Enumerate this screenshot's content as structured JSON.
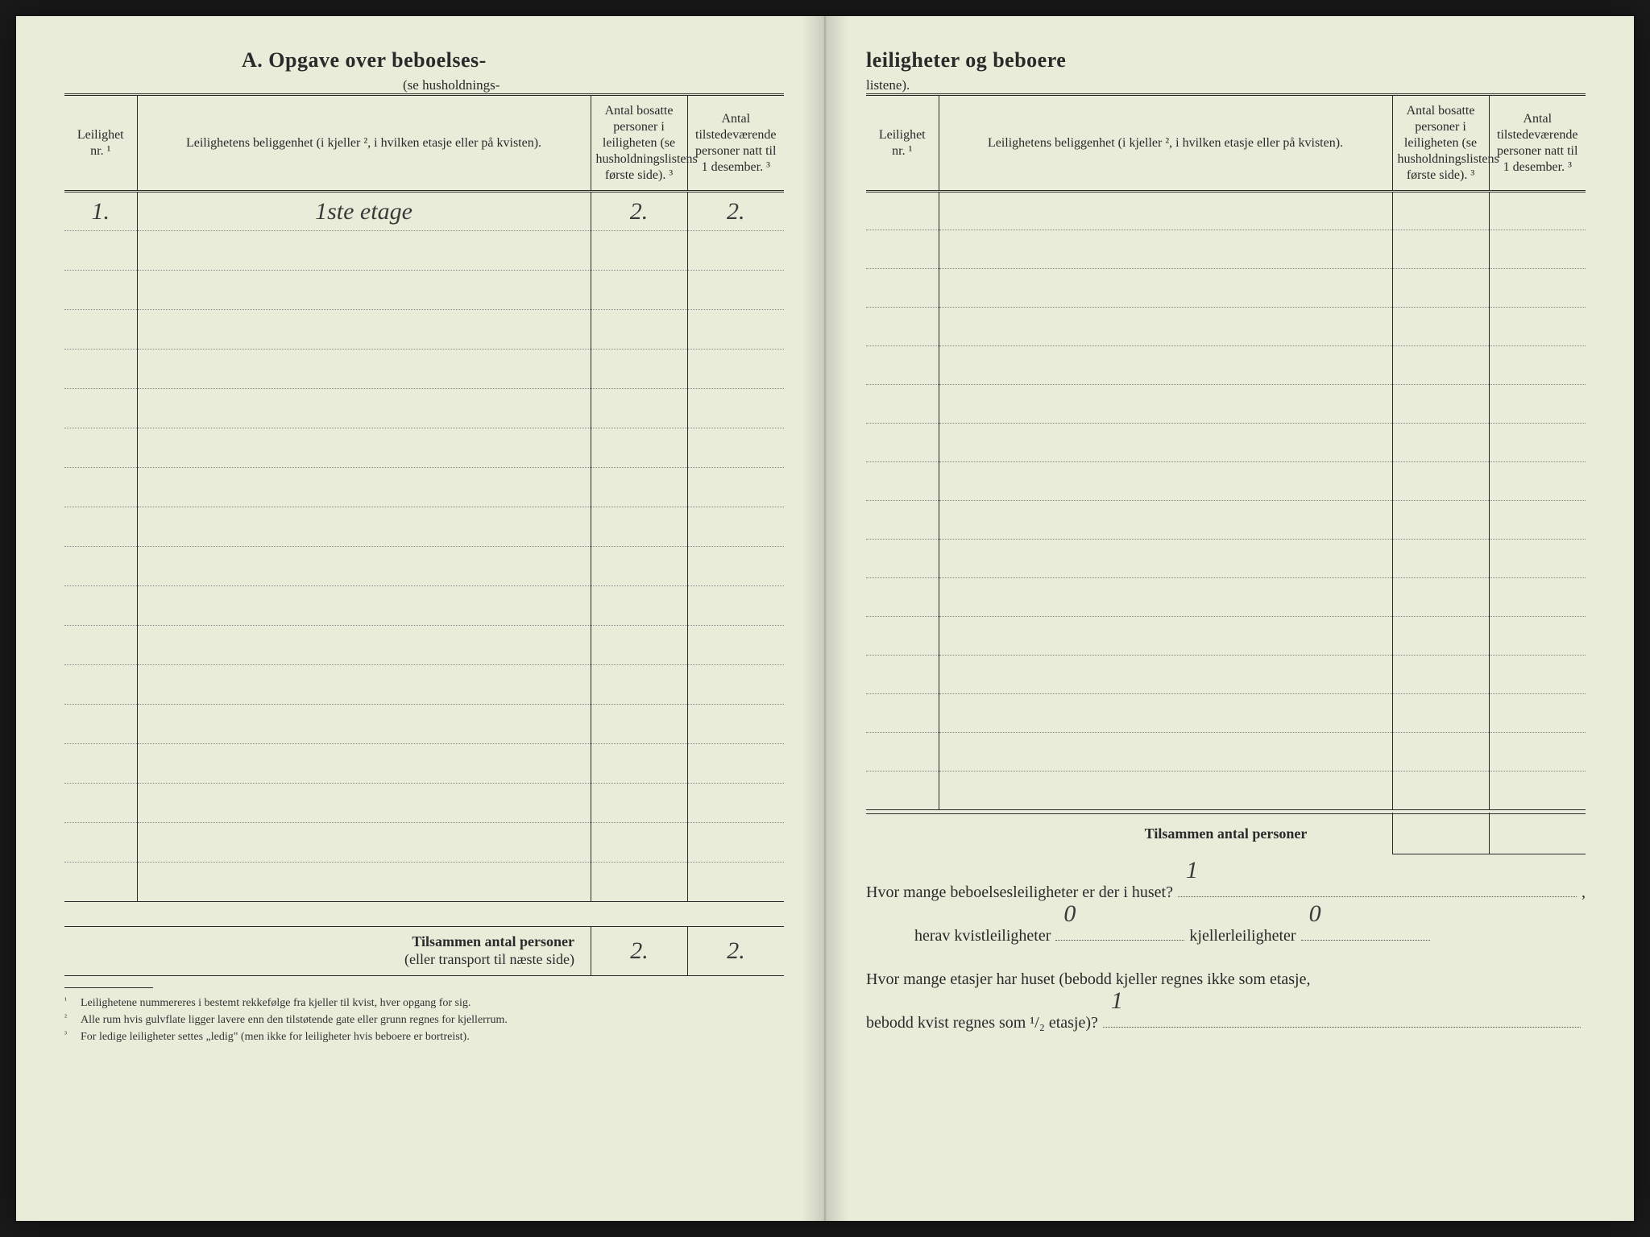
{
  "document": {
    "type": "table",
    "background_color": "#e8ecd9",
    "text_color": "#2a2a2a",
    "handwriting_color": "#3a3a3a",
    "border_color": "#2a2a2a",
    "dotted_color": "#888888",
    "font_family": "Georgia serif",
    "handwriting_font": "cursive",
    "title_fontsize": 26,
    "header_fontsize": 16,
    "footnote_fontsize": 14,
    "question_fontsize": 20
  },
  "left": {
    "title": "A.   Opgave over beboelses-",
    "subtitle": "(se husholdnings-",
    "columns": [
      "Leilighet nr. ¹",
      "Leilighetens beliggenhet (i kjeller ², i hvilken etasje eller på kvisten).",
      "Antal bosatte personer i leiligheten (se husholdningslistens første side). ³",
      "Antal tilstedeværende personer natt til 1 desember. ³"
    ],
    "rows": [
      {
        "nr": "1.",
        "loc": "1ste etage",
        "resident": "2.",
        "present": "2."
      },
      {
        "nr": "",
        "loc": "",
        "resident": "",
        "present": ""
      },
      {
        "nr": "",
        "loc": "",
        "resident": "",
        "present": ""
      },
      {
        "nr": "",
        "loc": "",
        "resident": "",
        "present": ""
      },
      {
        "nr": "",
        "loc": "",
        "resident": "",
        "present": ""
      },
      {
        "nr": "",
        "loc": "",
        "resident": "",
        "present": ""
      },
      {
        "nr": "",
        "loc": "",
        "resident": "",
        "present": ""
      },
      {
        "nr": "",
        "loc": "",
        "resident": "",
        "present": ""
      },
      {
        "nr": "",
        "loc": "",
        "resident": "",
        "present": ""
      },
      {
        "nr": "",
        "loc": "",
        "resident": "",
        "present": ""
      },
      {
        "nr": "",
        "loc": "",
        "resident": "",
        "present": ""
      },
      {
        "nr": "",
        "loc": "",
        "resident": "",
        "present": ""
      },
      {
        "nr": "",
        "loc": "",
        "resident": "",
        "present": ""
      },
      {
        "nr": "",
        "loc": "",
        "resident": "",
        "present": ""
      },
      {
        "nr": "",
        "loc": "",
        "resident": "",
        "present": ""
      },
      {
        "nr": "",
        "loc": "",
        "resident": "",
        "present": ""
      },
      {
        "nr": "",
        "loc": "",
        "resident": "",
        "present": ""
      },
      {
        "nr": "",
        "loc": "",
        "resident": "",
        "present": ""
      }
    ],
    "totals_label_bold": "Tilsammen antal personer",
    "totals_label_sub": "(eller transport til næste side)",
    "totals_resident": "2.",
    "totals_present": "2.",
    "footnotes": [
      "Leilighetene nummereres i bestemt rekkefølge fra kjeller til kvist, hver opgang for sig.",
      "Alle rum hvis gulvflate ligger lavere enn den tilstøtende gate eller grunn regnes for kjellerrum.",
      "For ledige leiligheter settes „ledig\" (men ikke for leiligheter hvis beboere er bortreist)."
    ]
  },
  "right": {
    "title": "leiligheter og beboere",
    "subtitle": "listene).",
    "columns": [
      "Leilighet nr. ¹",
      "Leilighetens beliggenhet (i kjeller ², i hvilken etasje eller på kvisten).",
      "Antal bosatte personer i leiligheten (se husholdningslistens første side). ³",
      "Antal tilstedeværende personer natt til 1 desember. ³"
    ],
    "row_count": 16,
    "totals_label": "Tilsammen antal personer",
    "questions": {
      "q1_pre": "Hvor mange beboelsesleiligheter er der i huset?",
      "q1_ans": "1",
      "q1_suffix": ",",
      "q2_pre": "herav kvistleiligheter",
      "q2_ans1": "0",
      "q2_mid": "kjellerleiligheter",
      "q2_ans2": "0",
      "q3_pre": "Hvor mange etasjer har huset (bebodd kjeller regnes ikke som etasje,",
      "q3_line2": "bebodd kvist regnes som ¹/₂ etasje)?",
      "q3_ans": "1"
    }
  }
}
